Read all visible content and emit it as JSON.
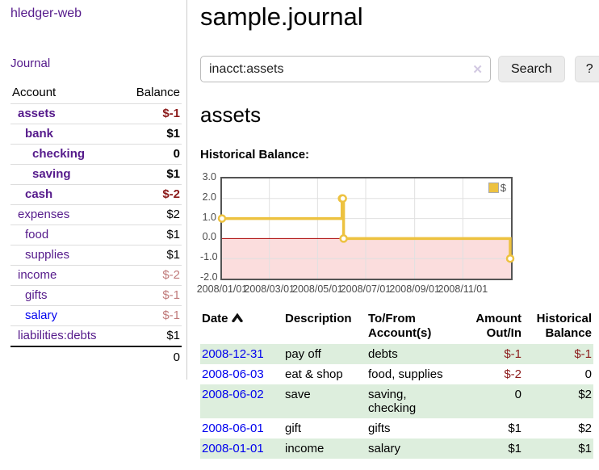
{
  "app": {
    "brand": "hledger-web"
  },
  "sidebar": {
    "journal_link": "Journal",
    "table": {
      "account_header": "Account",
      "balance_header": "Balance",
      "rows": [
        {
          "name": "assets",
          "level": 1,
          "bold": true,
          "balance": "$-1",
          "balance_class": "neg-strong"
        },
        {
          "name": "bank",
          "level": 2,
          "bold": true,
          "balance": "$1",
          "balance_class": ""
        },
        {
          "name": "checking",
          "level": 3,
          "bold": true,
          "balance": "0",
          "balance_class": ""
        },
        {
          "name": "saving",
          "level": 3,
          "bold": true,
          "balance": "$1",
          "balance_class": ""
        },
        {
          "name": "cash",
          "level": 2,
          "bold": true,
          "balance": "$-2",
          "balance_class": "neg-strong"
        },
        {
          "name": "expenses",
          "level": 1,
          "bold": false,
          "balance": "$2",
          "balance_class": ""
        },
        {
          "name": "food",
          "level": 2,
          "bold": false,
          "balance": "$1",
          "balance_class": ""
        },
        {
          "name": "supplies",
          "level": 2,
          "bold": false,
          "balance": "$1",
          "balance_class": ""
        },
        {
          "name": "income",
          "level": 1,
          "bold": false,
          "balance": "$-2",
          "balance_class": "neg-muted"
        },
        {
          "name": "gifts",
          "level": 2,
          "bold": false,
          "balance": "$-1",
          "balance_class": "neg-muted"
        },
        {
          "name": "salary",
          "level": 2,
          "bold": false,
          "balance": "$-1",
          "balance_class": "neg-muted",
          "unvisited": true
        },
        {
          "name": "liabilities:debts",
          "level": 1,
          "bold": false,
          "balance": "$1",
          "balance_class": ""
        }
      ],
      "total": "0"
    }
  },
  "main": {
    "title": "sample.journal",
    "search": {
      "value": "inacct:assets",
      "clear_icon": "✕",
      "button_label": "Search",
      "help_label": "?"
    },
    "account_heading": "assets",
    "chart_label": "Historical Balance:"
  },
  "chart_data": {
    "type": "line",
    "step": true,
    "title": "Historical Balance:",
    "series": [
      {
        "name": "$",
        "color": "#EDC240",
        "points": [
          [
            "2008-01-01",
            1
          ],
          [
            "2008-06-01",
            2
          ],
          [
            "2008-06-02",
            2
          ],
          [
            "2008-06-03",
            0
          ],
          [
            "2008-12-31",
            -1
          ]
        ]
      }
    ],
    "xlim": [
      "2008-01-01",
      "2009-01-01"
    ],
    "ylim": [
      -2,
      3
    ],
    "x_ticks": [
      "2008/01/01",
      "2008/03/01",
      "2008/05/01",
      "2008/07/01",
      "2008/09/01",
      "2008/11/01"
    ],
    "y_ticks": [
      "3.0",
      "2.0",
      "1.0",
      "0.0",
      "-1.0",
      "-2.0"
    ],
    "grid": true,
    "legend_position": "top-right",
    "negative_fill": "#fbdddd",
    "zero_line_color": "#aa0000",
    "grid_color": "#e0e0e0"
  },
  "register": {
    "headers": [
      "Date",
      "Description",
      "To/From\nAccount(s)",
      "Amount\nOut/In",
      "Historical\nBalance"
    ],
    "sort_icon": "sort-ascending",
    "rows": [
      {
        "date": "2008-12-31",
        "description": "pay off",
        "accounts": "debts",
        "amount": "$-1",
        "amount_class": "amt-neg",
        "balance": "$-1",
        "balance_class": "amt-neg"
      },
      {
        "date": "2008-06-03",
        "description": "eat & shop",
        "accounts": "food, supplies",
        "amount": "$-2",
        "amount_class": "amt-neg",
        "balance": "0",
        "balance_class": ""
      },
      {
        "date": "2008-06-02",
        "description": "save",
        "accounts": "saving,\nchecking",
        "amount": "0",
        "amount_class": "",
        "balance": "$2",
        "balance_class": ""
      },
      {
        "date": "2008-06-01",
        "description": "gift",
        "accounts": "gifts",
        "amount": "$1",
        "amount_class": "",
        "balance": "$2",
        "balance_class": ""
      },
      {
        "date": "2008-01-01",
        "description": "income",
        "accounts": "salary",
        "amount": "$1",
        "amount_class": "",
        "balance": "$1",
        "balance_class": ""
      }
    ]
  },
  "colors": {
    "link_visited": "#551A8B",
    "link_unvisited": "#0000EE",
    "negative_strong": "#8b1a1a",
    "negative_muted": "#c07a7a",
    "row_stripe_green": "#ddeedd",
    "series_gold": "#EDC240"
  }
}
